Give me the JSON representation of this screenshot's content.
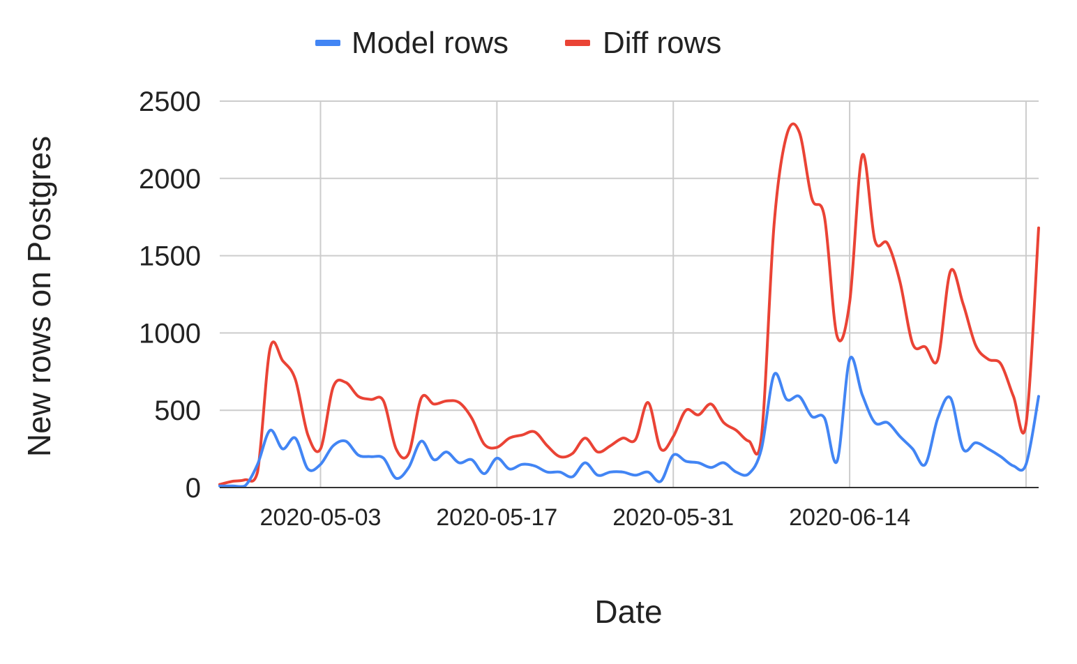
{
  "chart_data": {
    "type": "line",
    "title": "",
    "xlabel": "Date",
    "ylabel": "New rows on Postgres",
    "ylim": [
      0,
      2500
    ],
    "yticks": [
      "0",
      "500",
      "1000",
      "1500",
      "2000",
      "2500"
    ],
    "xtick_labels": [
      "2020-05-03",
      "2020-05-17",
      "2020-05-31",
      "2020-06-14"
    ],
    "x_range": [
      "2020-04-25",
      "2020-06-29"
    ],
    "grid": true,
    "legend_position": "top",
    "x": [
      "2020-04-25",
      "2020-04-26",
      "2020-04-27",
      "2020-04-28",
      "2020-04-29",
      "2020-04-30",
      "2020-05-01",
      "2020-05-02",
      "2020-05-03",
      "2020-05-04",
      "2020-05-05",
      "2020-05-06",
      "2020-05-07",
      "2020-05-08",
      "2020-05-09",
      "2020-05-10",
      "2020-05-11",
      "2020-05-12",
      "2020-05-13",
      "2020-05-14",
      "2020-05-15",
      "2020-05-16",
      "2020-05-17",
      "2020-05-18",
      "2020-05-19",
      "2020-05-20",
      "2020-05-21",
      "2020-05-22",
      "2020-05-23",
      "2020-05-24",
      "2020-05-25",
      "2020-05-26",
      "2020-05-27",
      "2020-05-28",
      "2020-05-29",
      "2020-05-30",
      "2020-05-31",
      "2020-06-01",
      "2020-06-02",
      "2020-06-03",
      "2020-06-04",
      "2020-06-05",
      "2020-06-06",
      "2020-06-07",
      "2020-06-08",
      "2020-06-09",
      "2020-06-10",
      "2020-06-11",
      "2020-06-12",
      "2020-06-13",
      "2020-06-14",
      "2020-06-15",
      "2020-06-16",
      "2020-06-17",
      "2020-06-18",
      "2020-06-19",
      "2020-06-20",
      "2020-06-21",
      "2020-06-22",
      "2020-06-23",
      "2020-06-24",
      "2020-06-25",
      "2020-06-26",
      "2020-06-27",
      "2020-06-28",
      "2020-06-29"
    ],
    "series": [
      {
        "name": "Model rows",
        "color": "#4285f4",
        "values": [
          10,
          10,
          10,
          150,
          370,
          250,
          320,
          120,
          150,
          270,
          300,
          210,
          200,
          190,
          60,
          130,
          300,
          180,
          230,
          160,
          180,
          90,
          190,
          120,
          150,
          140,
          100,
          100,
          70,
          160,
          80,
          100,
          100,
          80,
          100,
          40,
          210,
          170,
          160,
          130,
          160,
          100,
          90,
          250,
          730,
          570,
          590,
          460,
          450,
          170,
          830,
          600,
          420,
          420,
          330,
          250,
          150,
          450,
          580,
          250,
          290,
          250,
          200,
          140,
          150,
          590
        ]
      },
      {
        "name": "Diff rows",
        "color": "#ea4335",
        "values": [
          20,
          40,
          50,
          100,
          900,
          820,
          700,
          340,
          250,
          650,
          680,
          590,
          570,
          560,
          250,
          220,
          580,
          540,
          560,
          550,
          450,
          280,
          260,
          320,
          340,
          360,
          270,
          200,
          220,
          320,
          230,
          270,
          320,
          310,
          550,
          250,
          330,
          500,
          470,
          540,
          420,
          370,
          300,
          330,
          1700,
          2280,
          2300,
          1870,
          1750,
          980,
          1200,
          2150,
          1600,
          1580,
          1330,
          930,
          910,
          830,
          1400,
          1190,
          920,
          830,
          800,
          590,
          410,
          1680
        ]
      }
    ]
  }
}
